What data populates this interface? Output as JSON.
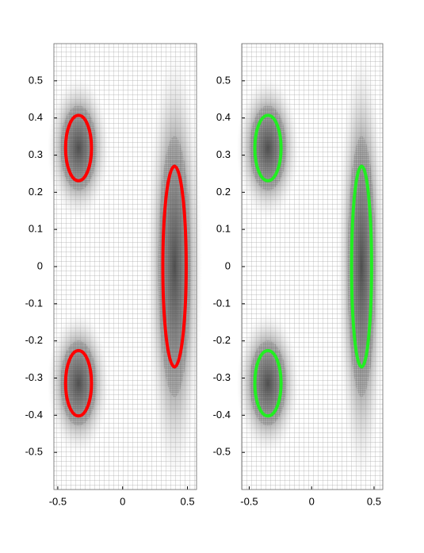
{
  "chart_data": [
    {
      "type": "ellipse",
      "color": "#ff0000",
      "xlim": [
        -0.53,
        0.57
      ],
      "ylim": [
        -0.6,
        0.6
      ],
      "xticks": [
        -0.5,
        0,
        0.5
      ],
      "yticks": [
        -0.5,
        -0.4,
        -0.3,
        -0.2,
        -0.1,
        0,
        0.1,
        0.2,
        0.3,
        0.4,
        0.5
      ],
      "ellipses": [
        {
          "cx": -0.34,
          "cy": 0.319,
          "rx": 0.1,
          "ry": 0.088
        },
        {
          "cx": -0.34,
          "cy": -0.314,
          "rx": 0.1,
          "ry": 0.088
        },
        {
          "cx": 0.4,
          "cy": 0,
          "rx": 0.09,
          "ry": 0.27
        }
      ]
    },
    {
      "type": "ellipse",
      "color": "#22ee22",
      "xlim": [
        -0.56,
        0.57
      ],
      "ylim": [
        -0.6,
        0.6
      ],
      "xticks": [
        -0.5,
        0,
        0.5
      ],
      "yticks": [
        -0.5,
        -0.4,
        -0.3,
        -0.2,
        -0.1,
        0,
        0.1,
        0.2,
        0.3,
        0.4,
        0.5
      ],
      "ellipses": [
        {
          "cx": -0.35,
          "cy": 0.319,
          "rx": 0.105,
          "ry": 0.088
        },
        {
          "cx": -0.35,
          "cy": -0.314,
          "rx": 0.105,
          "ry": 0.088
        },
        {
          "cx": 0.4,
          "cy": 0,
          "rx": 0.08,
          "ry": 0.27
        }
      ]
    }
  ]
}
